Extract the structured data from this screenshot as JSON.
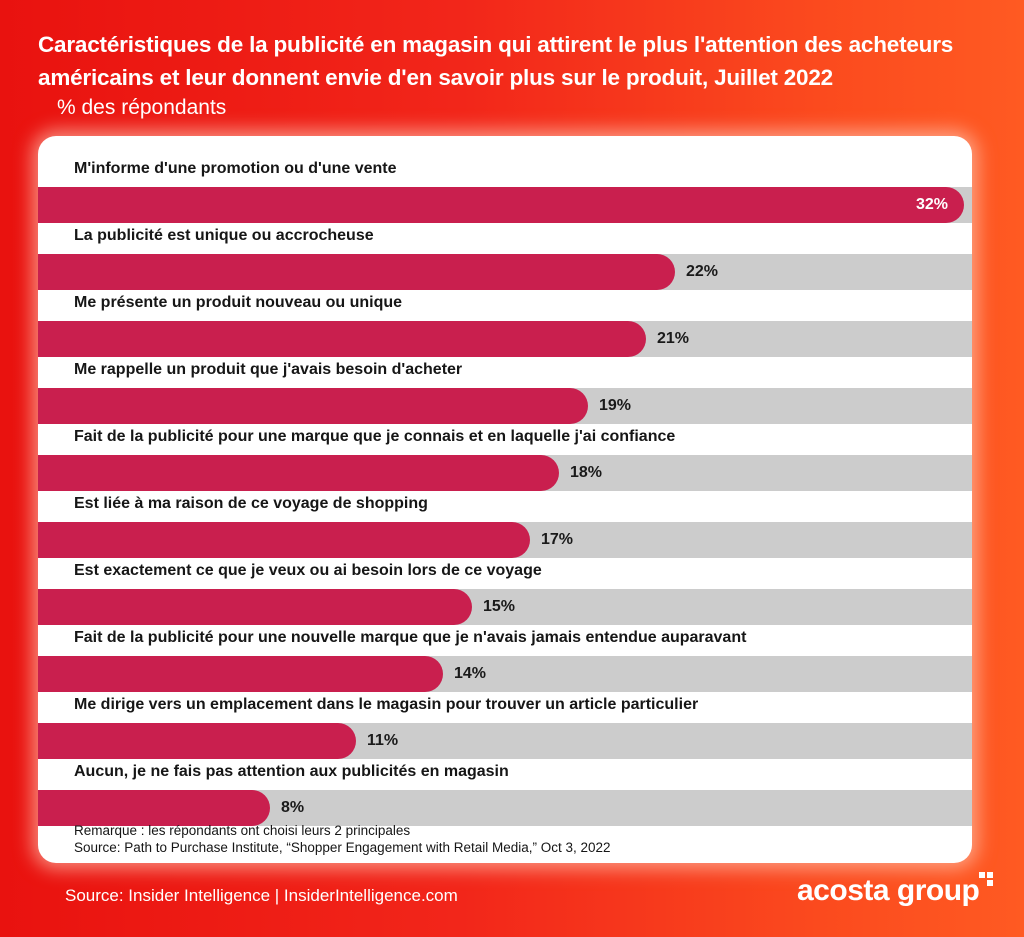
{
  "title": "Caractéristiques de la publicité en magasin qui attirent le plus l'attention des acheteurs américains et leur donnent envie d'en savoir plus sur le produit, Juillet 2022",
  "subtitle": "% des répondants",
  "chart_data": {
    "type": "bar",
    "orientation": "horizontal",
    "title": "Caractéristiques de la publicité en magasin qui attirent le plus l'attention des acheteurs américains et leur donnent envie d'en savoir plus sur le produit, Juillet 2022",
    "ylabel": "% des répondants",
    "xlim": [
      0,
      32
    ],
    "categories": [
      "M'informe d'une promotion ou d'une vente",
      "La publicité est unique ou accrocheuse",
      "Me présente un produit nouveau ou unique",
      "Me rappelle un produit que j'avais besoin d'acheter",
      "Fait de la publicité pour une marque que je connais et en laquelle j'ai confiance",
      "Est liée à ma raison de ce voyage de shopping",
      "Est exactement ce que je veux ou ai besoin lors de ce voyage",
      "Fait de la publicité pour une nouvelle marque que je n'avais jamais entendue auparavant",
      "Me dirige vers un emplacement dans le magasin pour trouver un article particulier",
      "Aucun, je ne fais pas attention aux publicités en magasin"
    ],
    "values": [
      32,
      22,
      21,
      19,
      18,
      17,
      15,
      14,
      11,
      8
    ],
    "value_labels": [
      "32%",
      "22%",
      "21%",
      "19%",
      "18%",
      "17%",
      "15%",
      "14%",
      "11%",
      "8%"
    ],
    "colors": {
      "bar": "#c91f4e",
      "track": "#cccccc"
    },
    "grid": false,
    "legend": "none"
  },
  "notes": {
    "remark": "Remarque : les répondants ont choisi leurs 2 principales",
    "source": "Source: Path to Purchase Institute, “Shopper Engagement with Retail Media,” Oct 3, 2022"
  },
  "footer": "Source: Insider Intelligence | InsiderIntelligence.com",
  "logo": {
    "text": "acosta group",
    "icon": "corner-mark-icon"
  }
}
